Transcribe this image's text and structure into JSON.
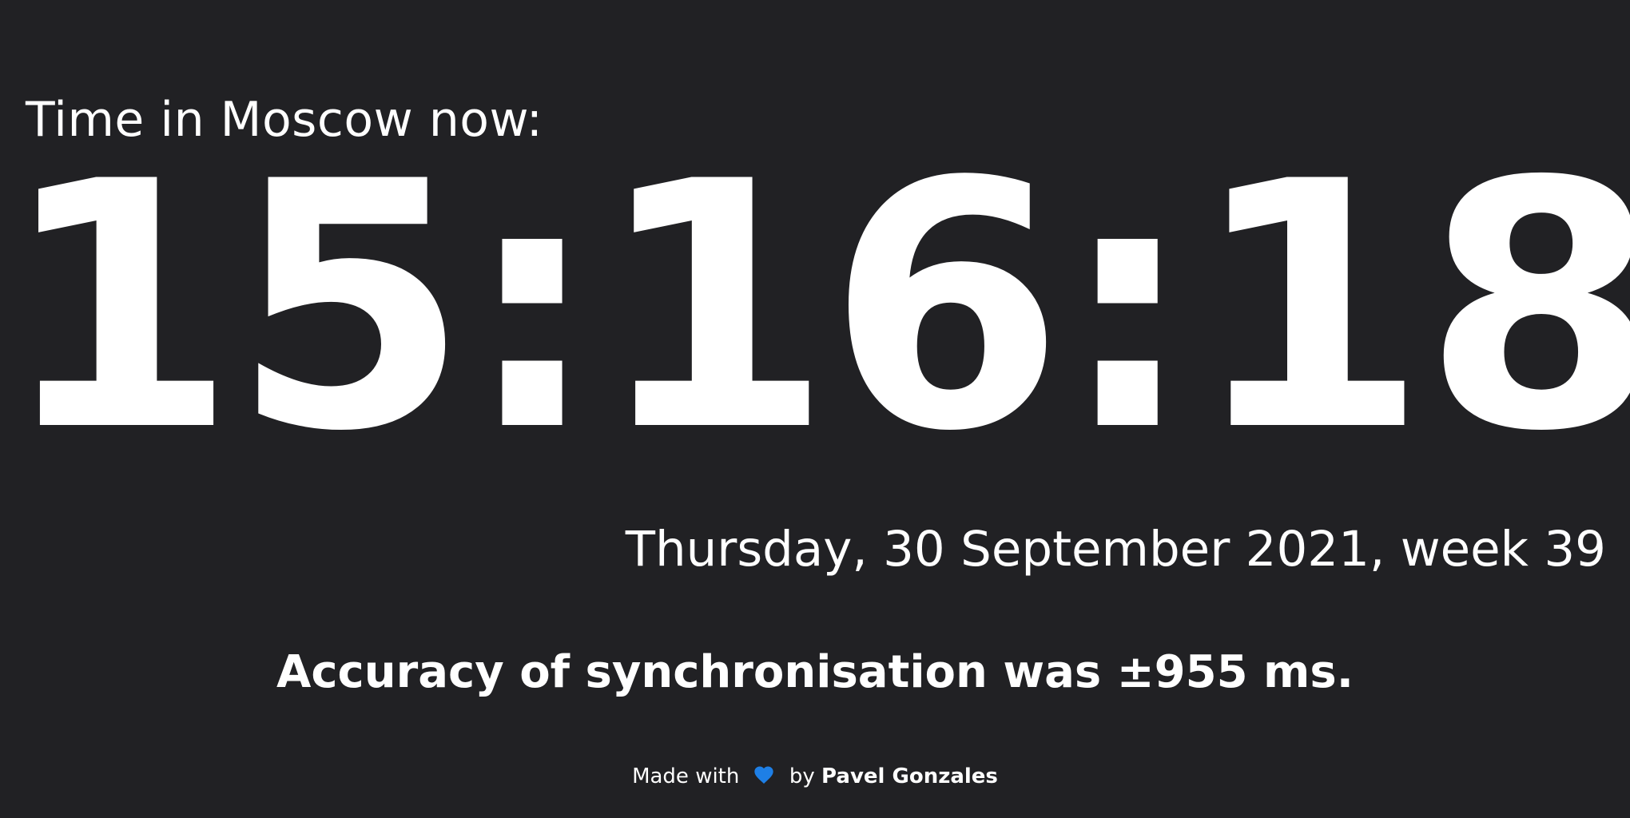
{
  "header": {
    "label": "Time in Moscow now:"
  },
  "clock": {
    "time": "15:16:18"
  },
  "date": {
    "full": "Thursday, 30 September 2021, week 39"
  },
  "sync": {
    "accuracy_text": "Accuracy of synchronisation was ±955 ms."
  },
  "footer": {
    "made_with": "Made with",
    "by": "by",
    "author": "Pavel Gonzales",
    "heart_icon": "heart-icon",
    "heart_color": "#1e7fe6"
  },
  "colors": {
    "background": "#212124",
    "text": "#ffffff"
  }
}
